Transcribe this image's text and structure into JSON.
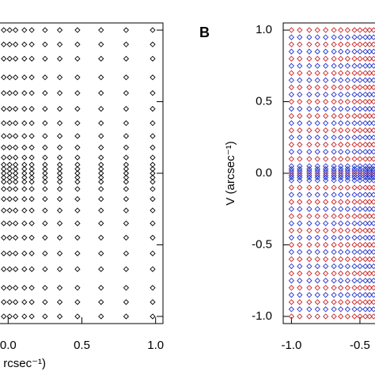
{
  "chart_data": [
    {
      "type": "scatter",
      "xlabel": "rcsec⁻¹)",
      "u": [
        -0.03,
        0.01,
        0.05,
        0.11,
        0.16,
        0.25,
        0.35,
        0.47,
        0.63,
        0.8,
        0.98
      ],
      "v": [
        1,
        0.9,
        0.8,
        0.67,
        0.56,
        0.45,
        0.35,
        0.26,
        0.18,
        0.11,
        0.06,
        0.03,
        0,
        -0.03,
        -0.06,
        -0.11,
        -0.18,
        -0.26,
        -0.35,
        -0.45,
        -0.56,
        -0.67,
        -0.8,
        -0.9,
        -1
      ],
      "color": "#000000",
      "xlim": [
        -0.05,
        1.05
      ],
      "ylim": [
        -1.05,
        1.05
      ],
      "xticks": [
        {
          "value": 0,
          "label": "0.0"
        },
        {
          "value": 0.5,
          "label": "0.5"
        },
        {
          "value": 1,
          "label": "1.0"
        }
      ],
      "yticks": [
        -1,
        -0.5,
        0,
        0.5,
        1
      ]
    },
    {
      "type": "scatter",
      "panel": "B",
      "ylabel": "V (arcsec⁻¹)",
      "u": [
        -1,
        -0.94,
        -0.87,
        -0.81,
        -0.75,
        -0.69,
        -0.64,
        -0.59,
        -0.54,
        -0.5,
        -0.46,
        -0.43,
        -0.4
      ],
      "series": [
        {
          "color": "#cc2222",
          "v": [
            1,
            0.9,
            0.8,
            0.7,
            0.6,
            0.5,
            0.4,
            0.3,
            0.2,
            0.1,
            0,
            -0.1,
            -0.2,
            -0.3,
            -0.4,
            -0.5,
            -0.6,
            -0.7,
            -0.8,
            -0.9,
            -1
          ]
        },
        {
          "color": "#2233cc",
          "v": [
            0.95,
            0.85,
            0.75,
            0.65,
            0.55,
            0.45,
            0.35,
            0.25,
            0.15,
            0.05,
            0.03,
            0.015,
            -0.015,
            -0.03,
            -0.05,
            -0.15,
            -0.25,
            -0.35,
            -0.45,
            -0.55,
            -0.65,
            -0.75,
            -0.85,
            -0.95
          ]
        }
      ],
      "xlim": [
        -1.06,
        -0.39
      ],
      "ylim": [
        -1.05,
        1.05
      ],
      "xticks": [
        {
          "value": -1,
          "label": "-1.0"
        },
        {
          "value": -0.5,
          "label": "-0.5"
        }
      ],
      "yticks": [
        {
          "value": -1,
          "label": "-1.0"
        },
        {
          "value": -0.5,
          "label": "-0.5"
        },
        {
          "value": 0,
          "label": "0.0"
        },
        {
          "value": 0.5,
          "label": "0.5"
        },
        {
          "value": 1,
          "label": "1.0"
        }
      ]
    }
  ]
}
